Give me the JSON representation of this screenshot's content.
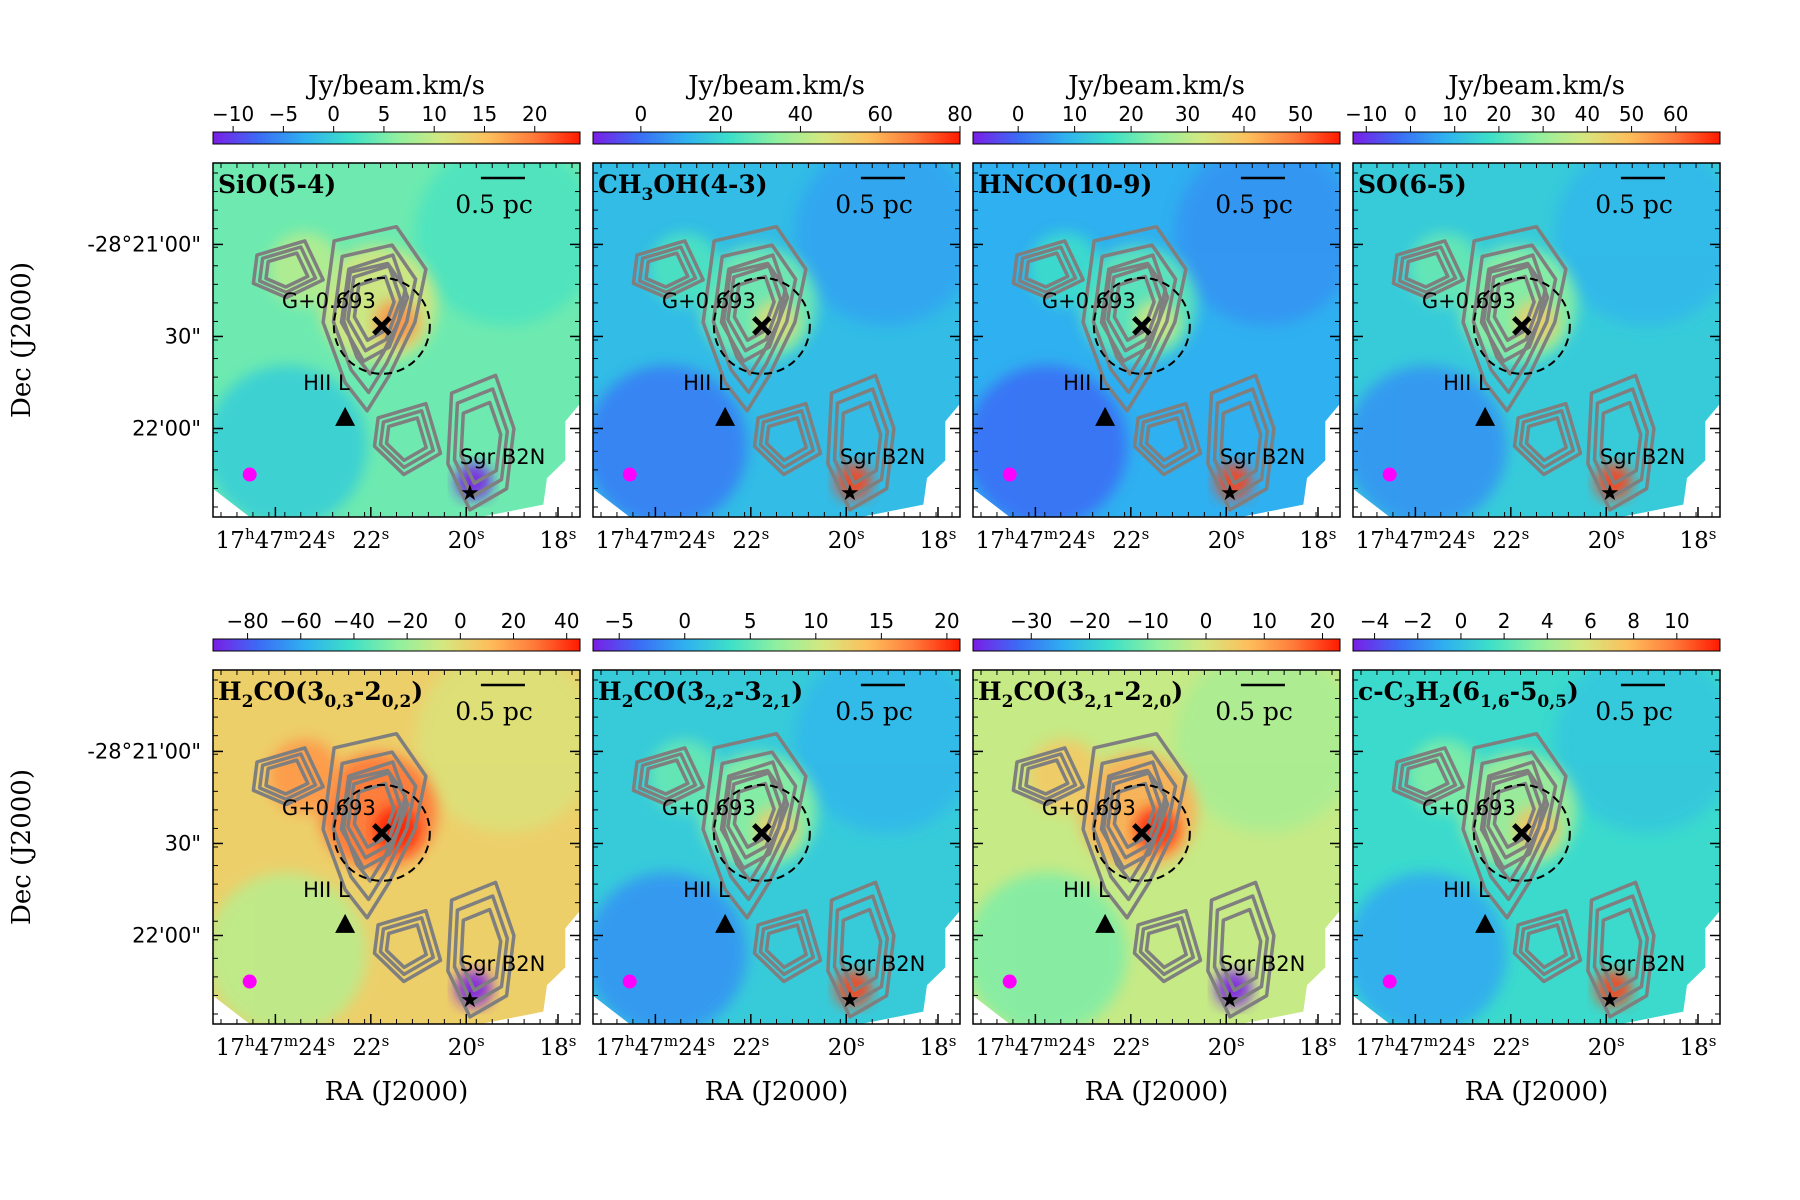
{
  "figure": {
    "ra_label": "RA (J2000)",
    "dec_label": "Dec (J2000)"
  },
  "colors": {
    "contour": "#7f7f7f",
    "beam": "#ff00ff",
    "marker": "#000000",
    "colormap": [
      "#7a1ee6",
      "#3b6cf5",
      "#2fb0f0",
      "#3de0c8",
      "#8ef0a0",
      "#d4e880",
      "#fdbf5c",
      "#ff7a3a",
      "#ff1a00"
    ]
  },
  "chart_data": [
    {
      "type": "heatmap",
      "id": "SiO",
      "title": "SiO(5-4)",
      "title_parts": [
        {
          "t": "SiO(5-4)"
        }
      ],
      "colorbar_label": "Jy/beam.km/s",
      "cmin": -12,
      "cmax": 24.5,
      "ticks": [
        -10,
        -5,
        0,
        5,
        10,
        15,
        20
      ],
      "tick_labels": [
        "−10",
        "−5",
        "0",
        "5",
        "10",
        "15",
        "20"
      ],
      "bg_level": 0.45,
      "xlabel": "",
      "ylabel": "Dec (J2000)",
      "ra_ticks": [
        "17h47m24s",
        "22s",
        "20s",
        "18s"
      ],
      "dec_ticks": [
        "-28°21'00\"",
        "30\"",
        "22'00\""
      ],
      "scalebar": "0.5 pc",
      "sources": [
        "G+0.693",
        "HII L",
        "Sgr B2N"
      ]
    },
    {
      "type": "heatmap",
      "id": "CH3OH",
      "title": "CH3OH(4-3)",
      "title_parts": [
        {
          "t": "CH"
        },
        {
          "t": "3",
          "sub": true
        },
        {
          "t": "OH(4-3)"
        }
      ],
      "colorbar_label": "Jy/beam.km/s",
      "cmin": -12,
      "cmax": 80,
      "ticks": [
        0,
        20,
        40,
        60,
        80
      ],
      "tick_labels": [
        "0",
        "20",
        "40",
        "60",
        "80"
      ],
      "bg_level": 0.28,
      "xlabel": "",
      "ylabel": "",
      "ra_ticks": [
        "17h47m24s",
        "22s",
        "20s",
        "18s"
      ],
      "dec_ticks": [],
      "scalebar": "0.5 pc",
      "sources": [
        "G+0.693",
        "HII L",
        "Sgr B2N"
      ]
    },
    {
      "type": "heatmap",
      "id": "HNCO",
      "title": "HNCO(10-9)",
      "title_parts": [
        {
          "t": "HNCO(10-9)"
        }
      ],
      "colorbar_label": "Jy/beam.km/s",
      "cmin": -8,
      "cmax": 57,
      "ticks": [
        0,
        10,
        20,
        30,
        40,
        50
      ],
      "tick_labels": [
        "0",
        "10",
        "20",
        "30",
        "40",
        "50"
      ],
      "bg_level": 0.25,
      "xlabel": "",
      "ylabel": "",
      "ra_ticks": [
        "17h47m24s",
        "22s",
        "20s",
        "18s"
      ],
      "dec_ticks": [],
      "scalebar": "0.5 pc",
      "sources": [
        "G+0.693",
        "HII L",
        "Sgr B2N"
      ]
    },
    {
      "type": "heatmap",
      "id": "SO",
      "title": "SO(6-5)",
      "title_parts": [
        {
          "t": "SO(6-5)"
        }
      ],
      "colorbar_label": "Jy/beam.km/s",
      "cmin": -13,
      "cmax": 70,
      "ticks": [
        -10,
        0,
        10,
        20,
        30,
        40,
        50,
        60
      ],
      "tick_labels": [
        "−10",
        "0",
        "10",
        "20",
        "30",
        "40",
        "50",
        "60"
      ],
      "bg_level": 0.32,
      "xlabel": "",
      "ylabel": "",
      "ra_ticks": [
        "17h47m24s",
        "22s",
        "20s",
        "18s"
      ],
      "dec_ticks": [],
      "scalebar": "0.5 pc",
      "sources": [
        "G+0.693",
        "HII L",
        "Sgr B2N"
      ]
    },
    {
      "type": "heatmap",
      "id": "H2CO_303",
      "title": "H2CO(30,3-20,2)",
      "title_parts": [
        {
          "t": "H"
        },
        {
          "t": "2",
          "sub": true
        },
        {
          "t": "CO(3"
        },
        {
          "t": "0,3",
          "sub": true
        },
        {
          "t": "-2"
        },
        {
          "t": "0,2",
          "sub": true
        },
        {
          "t": ")"
        }
      ],
      "colorbar_label": "",
      "cmin": -93,
      "cmax": 45,
      "ticks": [
        -80,
        -60,
        -40,
        -20,
        0,
        20,
        40
      ],
      "tick_labels": [
        "−80",
        "−60",
        "−40",
        "−20",
        "0",
        "20",
        "40"
      ],
      "bg_level": 0.7,
      "xlabel": "RA (J2000)",
      "ylabel": "Dec (J2000)",
      "ra_ticks": [
        "17h47m24s",
        "22s",
        "20s",
        "18s"
      ],
      "dec_ticks": [
        "-28°21'00\"",
        "30\"",
        "22'00\""
      ],
      "scalebar": "0.5 pc",
      "sources": [
        "G+0.693",
        "HII L",
        "Sgr B2N"
      ]
    },
    {
      "type": "heatmap",
      "id": "H2CO_322",
      "title": "H2CO(32,2-32,1)",
      "title_parts": [
        {
          "t": "H"
        },
        {
          "t": "2",
          "sub": true
        },
        {
          "t": "CO(3"
        },
        {
          "t": "2,2",
          "sub": true
        },
        {
          "t": "-3"
        },
        {
          "t": "2,1",
          "sub": true
        },
        {
          "t": ")"
        }
      ],
      "colorbar_label": "",
      "cmin": -7,
      "cmax": 21,
      "ticks": [
        -5,
        0,
        5,
        10,
        15,
        20
      ],
      "tick_labels": [
        "−5",
        "0",
        "5",
        "10",
        "15",
        "20"
      ],
      "bg_level": 0.32,
      "xlabel": "RA (J2000)",
      "ylabel": "",
      "ra_ticks": [
        "17h47m24s",
        "22s",
        "20s",
        "18s"
      ],
      "dec_ticks": [],
      "scalebar": "0.5 pc",
      "sources": [
        "G+0.693",
        "HII L",
        "Sgr B2N"
      ]
    },
    {
      "type": "heatmap",
      "id": "H2CO_321",
      "title": "H2CO(32,1-22,0)",
      "title_parts": [
        {
          "t": "H"
        },
        {
          "t": "2",
          "sub": true
        },
        {
          "t": "CO(3"
        },
        {
          "t": "2,1",
          "sub": true
        },
        {
          "t": "-2"
        },
        {
          "t": "2,0",
          "sub": true
        },
        {
          "t": ")"
        }
      ],
      "colorbar_label": "",
      "cmin": -40,
      "cmax": 23,
      "ticks": [
        -30,
        -20,
        -10,
        0,
        10,
        20
      ],
      "tick_labels": [
        "−30",
        "−20",
        "−10",
        "0",
        "10",
        "20"
      ],
      "bg_level": 0.6,
      "xlabel": "RA (J2000)",
      "ylabel": "",
      "ra_ticks": [
        "17h47m24s",
        "22s",
        "20s",
        "18s"
      ],
      "dec_ticks": [],
      "scalebar": "0.5 pc",
      "sources": [
        "G+0.693",
        "HII L",
        "Sgr B2N"
      ]
    },
    {
      "type": "heatmap",
      "id": "cC3H2",
      "title": "c-C3H2(61,6-50,5)",
      "title_parts": [
        {
          "t": "c-C"
        },
        {
          "t": "3",
          "sub": true
        },
        {
          "t": "H"
        },
        {
          "t": "2",
          "sub": true
        },
        {
          "t": "(6"
        },
        {
          "t": "1,6",
          "sub": true
        },
        {
          "t": "-5"
        },
        {
          "t": "0,5",
          "sub": true
        },
        {
          "t": ")"
        }
      ],
      "colorbar_label": "",
      "cmin": -5,
      "cmax": 12,
      "ticks": [
        -4,
        -2,
        0,
        2,
        4,
        6,
        8,
        10
      ],
      "tick_labels": [
        "−4",
        "−2",
        "0",
        "2",
        "4",
        "6",
        "8",
        "10"
      ],
      "bg_level": 0.36,
      "xlabel": "RA (J2000)",
      "ylabel": "",
      "ra_ticks": [
        "17h47m24s",
        "22s",
        "20s",
        "18s"
      ],
      "dec_ticks": [],
      "scalebar": "0.5 pc",
      "sources": [
        "G+0.693",
        "HII L",
        "Sgr B2N"
      ]
    }
  ]
}
